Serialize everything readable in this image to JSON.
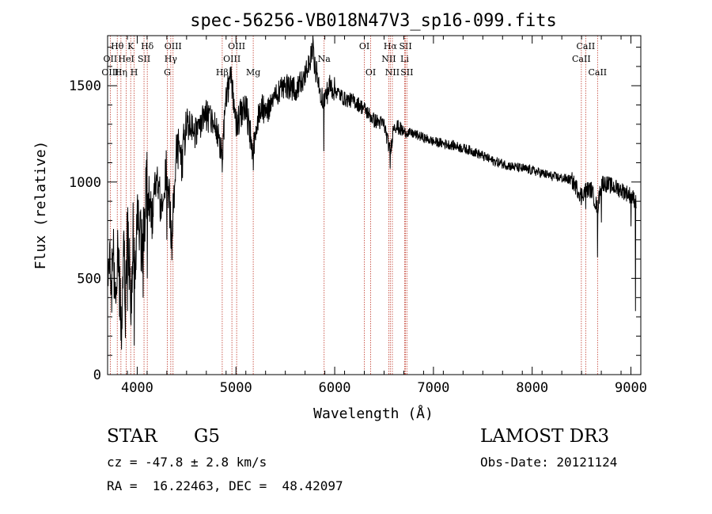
{
  "chart_data": {
    "type": "line",
    "title": "spec-56256-VB018N47V3_sp16-099.fits",
    "xlabel": "Wavelength (Å)",
    "ylabel": "Flux (relative)",
    "xlim": [
      3700,
      9100
    ],
    "ylim": [
      0,
      1760
    ],
    "x_ticks": [
      4000,
      5000,
      6000,
      7000,
      8000,
      9000
    ],
    "y_ticks": [
      0,
      500,
      1000,
      1500
    ],
    "x_tick_labels": [
      "4000",
      "5000",
      "6000",
      "7000",
      "8000",
      "9000"
    ],
    "y_tick_labels": [
      "0",
      "500",
      "1000",
      "1500"
    ],
    "series": [
      {
        "name": "flux",
        "color": "#000000",
        "anchors": [
          [
            3700,
            350
          ],
          [
            3720,
            700
          ],
          [
            3740,
            450
          ],
          [
            3760,
            650
          ],
          [
            3780,
            300
          ],
          [
            3800,
            700
          ],
          [
            3820,
            500
          ],
          [
            3840,
            200
          ],
          [
            3860,
            700
          ],
          [
            3880,
            400
          ],
          [
            3900,
            750
          ],
          [
            3920,
            600
          ],
          [
            3940,
            350
          ],
          [
            3960,
            800
          ],
          [
            3980,
            550
          ],
          [
            4000,
            850
          ],
          [
            4050,
            650
          ],
          [
            4100,
            1000
          ],
          [
            4150,
            800
          ],
          [
            4200,
            1050
          ],
          [
            4250,
            850
          ],
          [
            4300,
            1100
          ],
          [
            4350,
            700
          ],
          [
            4400,
            1200
          ],
          [
            4450,
            1100
          ],
          [
            4500,
            1300
          ],
          [
            4600,
            1250
          ],
          [
            4700,
            1350
          ],
          [
            4800,
            1300
          ],
          [
            4861,
            1150
          ],
          [
            4900,
            1450
          ],
          [
            4950,
            1550
          ],
          [
            5000,
            1300
          ],
          [
            5100,
            1400
          ],
          [
            5175,
            1150
          ],
          [
            5250,
            1400
          ],
          [
            5300,
            1350
          ],
          [
            5400,
            1450
          ],
          [
            5500,
            1500
          ],
          [
            5600,
            1480
          ],
          [
            5700,
            1550
          ],
          [
            5780,
            1680
          ],
          [
            5800,
            1600
          ],
          [
            5850,
            1480
          ],
          [
            5890,
            1420
          ],
          [
            5950,
            1500
          ],
          [
            6000,
            1480
          ],
          [
            6100,
            1430
          ],
          [
            6200,
            1420
          ],
          [
            6300,
            1380
          ],
          [
            6400,
            1320
          ],
          [
            6500,
            1300
          ],
          [
            6563,
            1150
          ],
          [
            6600,
            1300
          ],
          [
            6700,
            1260
          ],
          [
            6800,
            1250
          ],
          [
            6900,
            1230
          ],
          [
            7000,
            1210
          ],
          [
            7200,
            1190
          ],
          [
            7400,
            1160
          ],
          [
            7600,
            1110
          ],
          [
            7800,
            1080
          ],
          [
            8000,
            1060
          ],
          [
            8200,
            1030
          ],
          [
            8400,
            1010
          ],
          [
            8498,
            930
          ],
          [
            8542,
            960
          ],
          [
            8600,
            960
          ],
          [
            8662,
            860
          ],
          [
            8700,
            1000
          ],
          [
            8800,
            980
          ],
          [
            8900,
            960
          ],
          [
            9000,
            930
          ],
          [
            9050,
            900
          ]
        ],
        "absorption_dips": [
          [
            3820,
            300
          ],
          [
            3840,
            130
          ],
          [
            3880,
            190
          ],
          [
            3900,
            330
          ],
          [
            3935,
            300
          ],
          [
            3970,
            150
          ],
          [
            4060,
            400
          ],
          [
            4102,
            500
          ],
          [
            4300,
            700
          ],
          [
            4861,
            1050
          ],
          [
            5175,
            1060
          ],
          [
            5890,
            1160
          ],
          [
            6563,
            1070
          ],
          [
            8498,
            880
          ],
          [
            8542,
            860
          ],
          [
            8662,
            610
          ],
          [
            8700,
            790
          ],
          [
            9000,
            770
          ]
        ],
        "spikes": [
          [
            4950,
            1600
          ],
          [
            5780,
            1760
          ],
          [
            5800,
            1650
          ],
          [
            9045,
            330
          ]
        ]
      }
    ],
    "line_markers": [
      {
        "label": "Hθ",
        "wavelength": 3798,
        "row": 1
      },
      {
        "label": "OII",
        "wavelength": 3727,
        "row": 2
      },
      {
        "label": "OIII",
        "wavelength": 3727,
        "row": 3
      },
      {
        "label": "K",
        "wavelength": 3934,
        "row": 1
      },
      {
        "label": "HeI",
        "wavelength": 3889,
        "row": 2
      },
      {
        "label": "Hη",
        "wavelength": 3835,
        "row": 3
      },
      {
        "label": "Hδ",
        "wavelength": 4102,
        "row": 1
      },
      {
        "label": "SII",
        "wavelength": 4069,
        "row": 2
      },
      {
        "label": "H",
        "wavelength": 3969,
        "row": 3
      },
      {
        "label": "OIII",
        "wavelength": 4363,
        "row": 1
      },
      {
        "label": "Hγ",
        "wavelength": 4340,
        "row": 2
      },
      {
        "label": "G",
        "wavelength": 4305,
        "row": 3
      },
      {
        "label": "OIII",
        "wavelength": 5007,
        "row": 1
      },
      {
        "label": "OIII",
        "wavelength": 4959,
        "row": 2
      },
      {
        "label": "Hβ",
        "wavelength": 4861,
        "row": 3
      },
      {
        "label": "Mg",
        "wavelength": 5175,
        "row": 3
      },
      {
        "label": "Na",
        "wavelength": 5893,
        "row": 2
      },
      {
        "label": "OI",
        "wavelength": 6300,
        "row": 1
      },
      {
        "label": "OI",
        "wavelength": 6364,
        "row": 3
      },
      {
        "label": "Hα",
        "wavelength": 6563,
        "row": 1
      },
      {
        "label": "SII",
        "wavelength": 6717,
        "row": 1
      },
      {
        "label": "NII",
        "wavelength": 6548,
        "row": 2
      },
      {
        "label": "Li",
        "wavelength": 6708,
        "row": 2
      },
      {
        "label": "NII",
        "wavelength": 6584,
        "row": 3
      },
      {
        "label": "SII",
        "wavelength": 6731,
        "row": 3
      },
      {
        "label": "CaII",
        "wavelength": 8542,
        "row": 1
      },
      {
        "label": "CaII",
        "wavelength": 8498,
        "row": 2
      },
      {
        "label": "CaII",
        "wavelength": 8662,
        "row": 3
      }
    ]
  },
  "info": {
    "object_class": "STAR",
    "subclass": "G5",
    "survey": "LAMOST DR3",
    "redshift_line": "cz = -47.8 ± 2.8 km/s",
    "obs_date_line": "Obs-Date: 20121124",
    "coords_line": "RA =  16.22463, DEC =  48.42097"
  }
}
